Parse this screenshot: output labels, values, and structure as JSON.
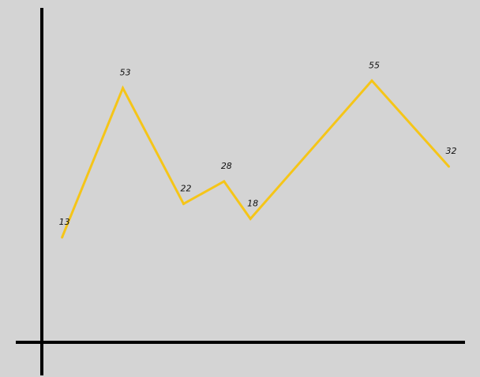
{
  "chart_data": {
    "type": "line",
    "series": [
      {
        "points": [
          {
            "x": 1,
            "y": 13
          },
          {
            "x": 4,
            "y": 53
          },
          {
            "x": 7,
            "y": 22
          },
          {
            "x": 9,
            "y": 28
          },
          {
            "x": 10.3,
            "y": 18
          },
          {
            "x": 16.3,
            "y": 55
          },
          {
            "x": 20.1,
            "y": 32
          }
        ],
        "labels": [
          "13",
          "53",
          "22",
          "28",
          "18",
          "55",
          "32"
        ],
        "color": "#f5c518"
      }
    ],
    "xlim": [
      0,
      20.9
    ],
    "ylim": [
      -15.1,
      74.5
    ],
    "grid": false,
    "axes_color": "#000000",
    "background": "#d4d4d4"
  }
}
